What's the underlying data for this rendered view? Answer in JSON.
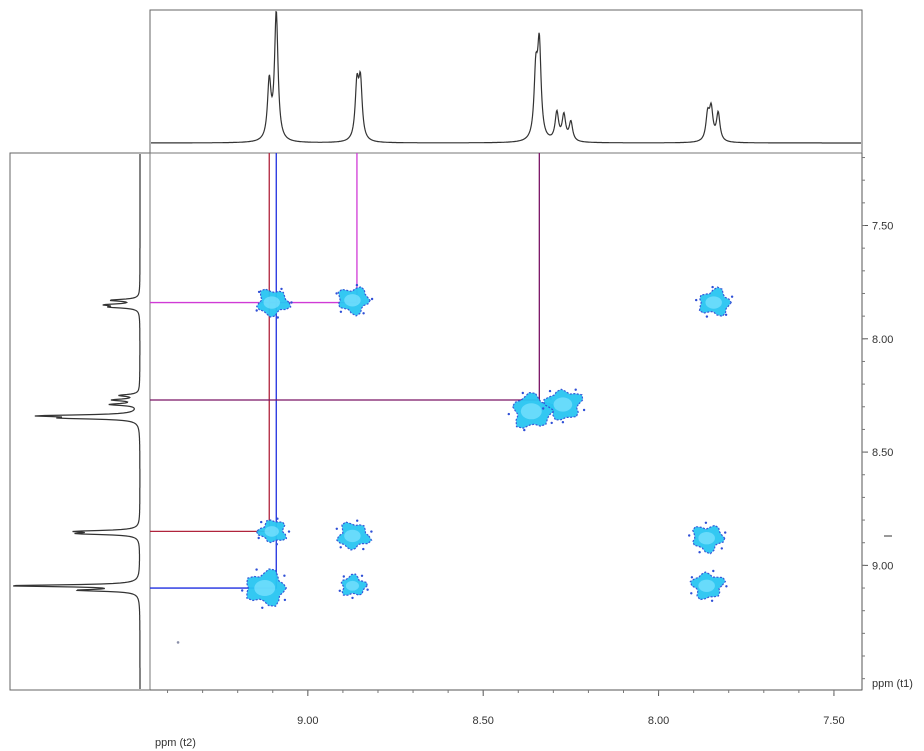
{
  "chart_data": {
    "type": "scatter",
    "subtype": "2D NMR contour plot (COSY) with projected 1D spectra",
    "xlabel": "ppm (t2)",
    "ylabel": "ppm (t1)",
    "xlim": [
      9.45,
      7.42
    ],
    "ylim": [
      7.18,
      9.55
    ],
    "x_axis_reversed": true,
    "y_axis_increasing_downward": true,
    "x_ticks": [
      "9.00",
      "8.50",
      "8.00",
      "7.50"
    ],
    "x_tick_values": [
      9.0,
      8.5,
      8.0,
      7.5
    ],
    "y_ticks": [
      "7.50",
      "8.00",
      "8.50",
      "9.00"
    ],
    "y_tick_values": [
      7.5,
      8.0,
      8.5,
      9.0
    ],
    "grid": false,
    "colors": {
      "contour_fill": "#29c6f2",
      "contour_edge": "#2f4fd6",
      "axis": "#555555",
      "spectrum": "#333333"
    },
    "series": [
      {
        "points": [
          {
            "x": 9.1,
            "y": 7.84,
            "intensity": 0.6
          },
          {
            "x": 8.87,
            "y": 7.83,
            "intensity": 0.6
          },
          {
            "x": 7.84,
            "y": 7.84,
            "intensity": 0.6
          },
          {
            "x": 8.36,
            "y": 8.32,
            "intensity": 1.0
          },
          {
            "x": 8.27,
            "y": 8.29,
            "intensity": 0.8
          },
          {
            "x": 9.1,
            "y": 8.85,
            "intensity": 0.4
          },
          {
            "x": 8.87,
            "y": 8.87,
            "intensity": 0.6
          },
          {
            "x": 7.86,
            "y": 8.88,
            "intensity": 0.6
          },
          {
            "x": 9.12,
            "y": 9.1,
            "intensity": 1.0
          },
          {
            "x": 8.87,
            "y": 9.09,
            "intensity": 0.3
          },
          {
            "x": 7.86,
            "y": 9.09,
            "intensity": 0.6
          }
        ]
      }
    ],
    "projection_peaks_ppm": [
      {
        "ppm": 9.11,
        "height": 0.45
      },
      {
        "ppm": 9.09,
        "height": 1.0
      },
      {
        "ppm": 8.86,
        "height": 0.42
      },
      {
        "ppm": 8.85,
        "height": 0.44
      },
      {
        "ppm": 8.35,
        "height": 0.5
      },
      {
        "ppm": 8.34,
        "height": 0.72
      },
      {
        "ppm": 8.29,
        "height": 0.22
      },
      {
        "ppm": 8.27,
        "height": 0.2
      },
      {
        "ppm": 8.25,
        "height": 0.15
      },
      {
        "ppm": 7.86,
        "height": 0.2
      },
      {
        "ppm": 7.85,
        "height": 0.24
      },
      {
        "ppm": 7.83,
        "height": 0.22
      }
    ],
    "correlation_lines": [
      {
        "x": 9.11,
        "y": 8.85,
        "color": "#b0243c"
      },
      {
        "x": 9.09,
        "y": 9.1,
        "color": "#1f2fe0"
      },
      {
        "x": 8.86,
        "y": 7.84,
        "color": "#d03ad6"
      },
      {
        "x": 8.34,
        "y": 8.27,
        "color": "#7a1466"
      }
    ]
  }
}
